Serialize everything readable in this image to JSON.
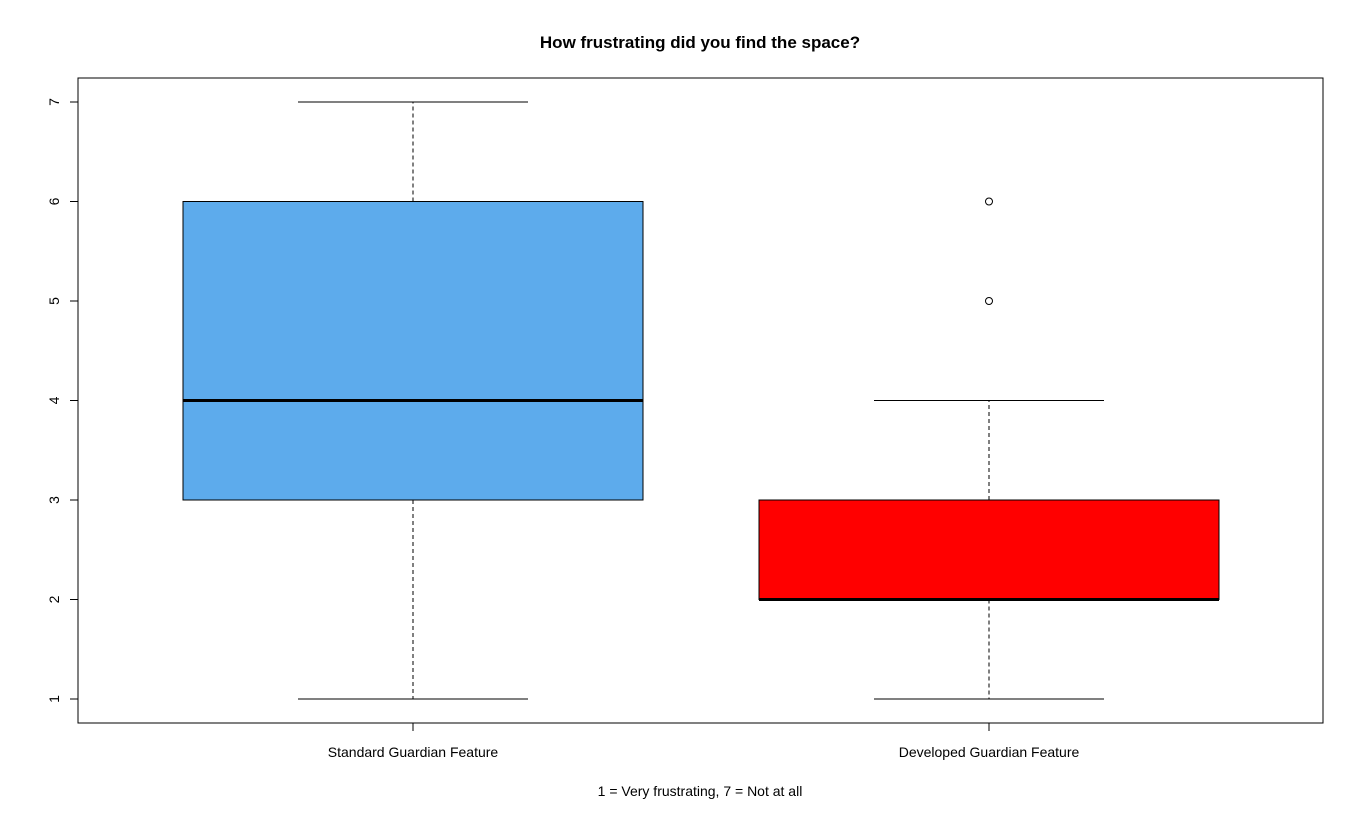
{
  "chart_data": {
    "type": "boxplot",
    "title": "How frustrating did you find the space?",
    "xlabel": "1 = Very frustrating, 7 = Not at all",
    "ylabel": "",
    "ylim": [
      1,
      7
    ],
    "yticks": [
      "1",
      "2",
      "3",
      "4",
      "5",
      "6",
      "7"
    ],
    "categories": [
      "Standard Guardian Feature",
      "Developed Guardian Feature"
    ],
    "series": [
      {
        "name": "Standard Guardian Feature",
        "color": "#5dabec",
        "whisker_low": 1,
        "q1": 3,
        "median": 4,
        "q3": 6,
        "whisker_high": 7,
        "outliers": []
      },
      {
        "name": "Developed Guardian Feature",
        "color": "#ff0000",
        "whisker_low": 1,
        "q1": 2,
        "median": 2,
        "q3": 3,
        "whisker_high": 4,
        "outliers": [
          5,
          6
        ]
      }
    ]
  }
}
